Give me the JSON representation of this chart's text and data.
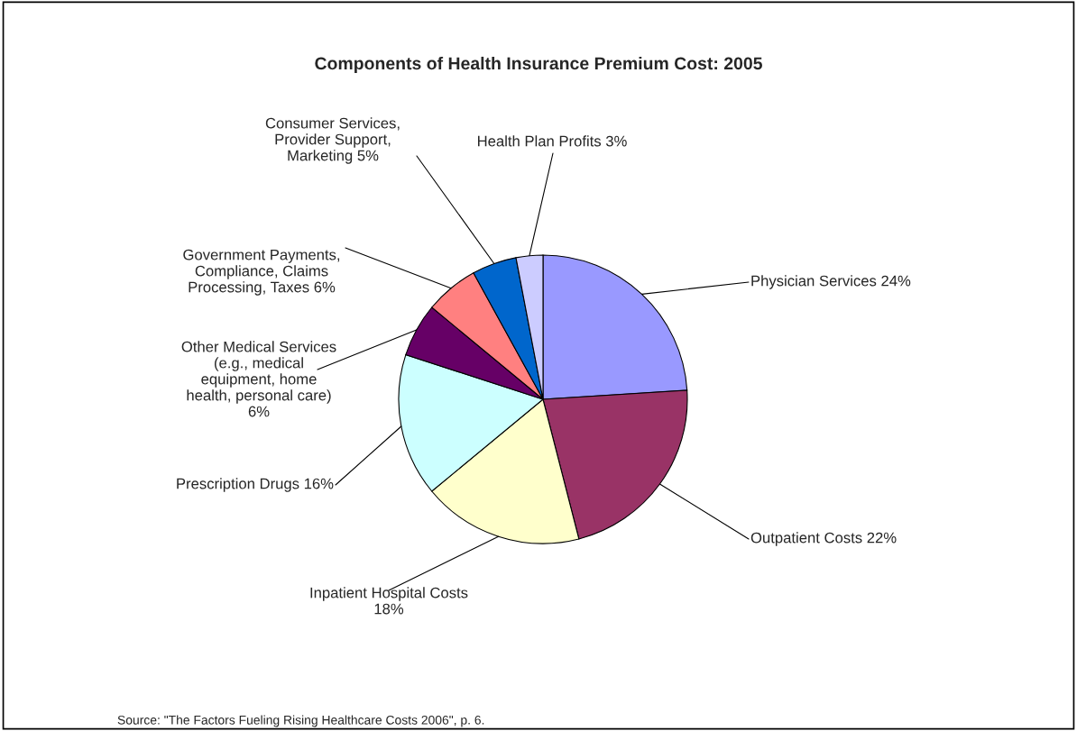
{
  "chart_data": {
    "type": "pie",
    "title": "Components of Health Insurance Premium Cost: 2005",
    "categories": [
      "Physician Services 24%",
      "Outpatient Costs 22%",
      "Inpatient Hospital Costs\n18%",
      "Prescription Drugs 16%",
      "Other Medical Services\n(e.g., medical\nequipment, home\nhealth, personal care)\n6%",
      "Government Payments,\nCompliance, Claims\nProcessing, Taxes 6%",
      "Consumer Services,\nProvider Support,\nMarketing 5%",
      "Health Plan Profits 3%"
    ],
    "values": [
      24,
      22,
      18,
      16,
      6,
      6,
      5,
      3
    ],
    "colors": [
      "#9999ff",
      "#993366",
      "#ffffcc",
      "#ccffff",
      "#660066",
      "#ff8080",
      "#0066cc",
      "#ccccff"
    ],
    "legend": false,
    "annotations": [
      "Source: \"The Factors Fueling Rising Healthcare Costs 2006\", p. 6."
    ]
  }
}
